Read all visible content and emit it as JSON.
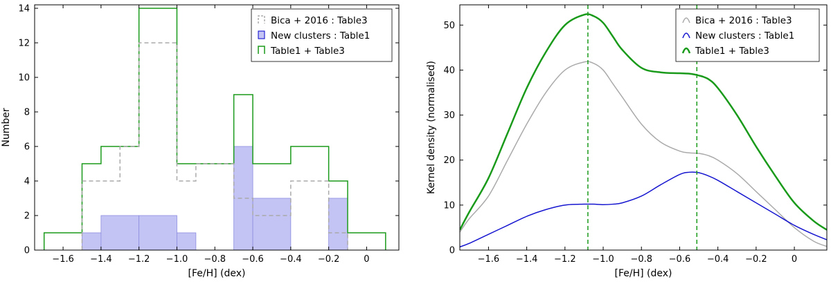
{
  "chart_data": [
    {
      "type": "histogram",
      "xlabel": "[Fe/H] (dex)",
      "ylabel": "Number",
      "xlim": [
        -1.75,
        0.17
      ],
      "ylim": [
        0,
        14.2
      ],
      "xticks": [
        -1.6,
        -1.4,
        -1.2,
        -1.0,
        -0.8,
        -0.6,
        -0.4,
        -0.2,
        0
      ],
      "xtick_labels": [
        "−1.6",
        "−1.4",
        "−1.2",
        "−1.0",
        "−0.8",
        "−0.6",
        "−0.4",
        "−0.2",
        "0"
      ],
      "yticks": [
        0,
        2,
        4,
        6,
        8,
        10,
        12,
        14
      ],
      "ytick_labels": [
        "0",
        "2",
        "4",
        "6",
        "8",
        "10",
        "12",
        "14"
      ],
      "bin_edges": [
        -1.67,
        -1.5,
        -1.33,
        -1.17,
        -1.0,
        -0.83,
        -0.67,
        -0.5,
        -0.33,
        -0.17,
        0.0,
        0.1
      ],
      "legend_position": "top-right",
      "series": [
        {
          "name": "Bica + 2016 :  Table3",
          "style": "dashed-step",
          "color": "#aaaaaa",
          "bins": [
            {
              "x0": -1.5,
              "x1": -1.3,
              "count": 4
            },
            {
              "x0": -1.3,
              "x1": -1.2,
              "count": 6
            },
            {
              "x0": -1.2,
              "x1": -1.0,
              "count": 12
            },
            {
              "x0": -1.0,
              "x1": -0.9,
              "count": 4
            },
            {
              "x0": -0.9,
              "x1": -0.7,
              "count": 5
            },
            {
              "x0": -0.7,
              "x1": -0.6,
              "count": 3
            },
            {
              "x0": -0.6,
              "x1": -0.4,
              "count": 2
            },
            {
              "x0": -0.4,
              "x1": -0.2,
              "count": 4
            },
            {
              "x0": -0.2,
              "x1": -0.1,
              "count": 1
            }
          ]
        },
        {
          "name": "New clusters :  Table1",
          "style": "filled",
          "color": "#0000cc",
          "fill": "#c4c4f4",
          "bins": [
            {
              "x0": -1.5,
              "x1": -1.4,
              "count": 1
            },
            {
              "x0": -1.4,
              "x1": -1.2,
              "count": 2
            },
            {
              "x0": -1.2,
              "x1": -1.0,
              "count": 2
            },
            {
              "x0": -1.0,
              "x1": -0.9,
              "count": 1
            },
            {
              "x0": -0.7,
              "x1": -0.6,
              "count": 6
            },
            {
              "x0": -0.6,
              "x1": -0.4,
              "count": 3
            },
            {
              "x0": -0.2,
              "x1": -0.1,
              "count": 3
            }
          ]
        },
        {
          "name": "Table1 + Table3",
          "style": "step",
          "color": "#1a9a1a",
          "bins": [
            {
              "x0": -1.7,
              "x1": -1.5,
              "count": 1
            },
            {
              "x0": -1.5,
              "x1": -1.4,
              "count": 5
            },
            {
              "x0": -1.4,
              "x1": -1.2,
              "count": 6
            },
            {
              "x0": -1.2,
              "x1": -1.0,
              "count": 14
            },
            {
              "x0": -1.0,
              "x1": -0.7,
              "count": 5
            },
            {
              "x0": -0.7,
              "x1": -0.6,
              "count": 9
            },
            {
              "x0": -0.6,
              "x1": -0.4,
              "count": 5
            },
            {
              "x0": -0.4,
              "x1": -0.2,
              "count": 6
            },
            {
              "x0": -0.2,
              "x1": -0.1,
              "count": 4
            },
            {
              "x0": -0.1,
              "x1": 0.1,
              "count": 1
            }
          ]
        }
      ]
    },
    {
      "type": "line",
      "xlabel": "[Fe/H] (dex)",
      "ylabel": "Kernel density (normalised)",
      "xlim": [
        -1.75,
        0.17
      ],
      "ylim": [
        0,
        54.5
      ],
      "xticks": [
        -1.6,
        -1.4,
        -1.2,
        -1.0,
        -0.8,
        -0.6,
        -0.4,
        -0.2,
        0
      ],
      "xtick_labels": [
        "−1.6",
        "−1.4",
        "−1.2",
        "−1.0",
        "−0.8",
        "−0.6",
        "−0.4",
        "−0.2",
        "0"
      ],
      "yticks": [
        0,
        10,
        20,
        30,
        40,
        50
      ],
      "ytick_labels": [
        "0",
        "10",
        "20",
        "30",
        "40",
        "50"
      ],
      "vlines": [
        -1.08,
        -0.51
      ],
      "legend_position": "top-right",
      "x": [
        -1.75,
        -1.7,
        -1.6,
        -1.5,
        -1.4,
        -1.3,
        -1.2,
        -1.1,
        -1.05,
        -1.0,
        -0.95,
        -0.9,
        -0.8,
        -0.7,
        -0.6,
        -0.55,
        -0.5,
        -0.45,
        -0.4,
        -0.3,
        -0.2,
        -0.1,
        0,
        0.1,
        0.17
      ],
      "series": [
        {
          "name": "Bica + 2016 :  Table3",
          "color": "#aaaaaa",
          "values": [
            4,
            7,
            12,
            20,
            28,
            35,
            40,
            41.8,
            41.5,
            40,
            37,
            34,
            28,
            24,
            22,
            21.6,
            21.5,
            21,
            20,
            17,
            13,
            9,
            5,
            2,
            0.8
          ]
        },
        {
          "name": "New clusters :  Table1",
          "color": "#1515d0",
          "values": [
            0.7,
            1.5,
            3.5,
            5.5,
            7.5,
            9,
            10,
            10.2,
            10.2,
            10.1,
            10.2,
            10.5,
            12,
            14.5,
            16.8,
            17.3,
            17.2,
            16.5,
            15.5,
            13,
            10.5,
            8,
            5.5,
            3.5,
            2.3
          ]
        },
        {
          "name": "Table1 + Table3",
          "color": "#1a9a1a",
          "values": [
            4.5,
            8.5,
            16,
            26,
            36,
            44,
            50,
            52.3,
            52,
            50.5,
            47.5,
            44.5,
            40.5,
            39.5,
            39.3,
            39.2,
            38.8,
            38,
            36,
            30,
            23,
            16.5,
            10.5,
            6.5,
            4.5
          ]
        }
      ]
    }
  ]
}
